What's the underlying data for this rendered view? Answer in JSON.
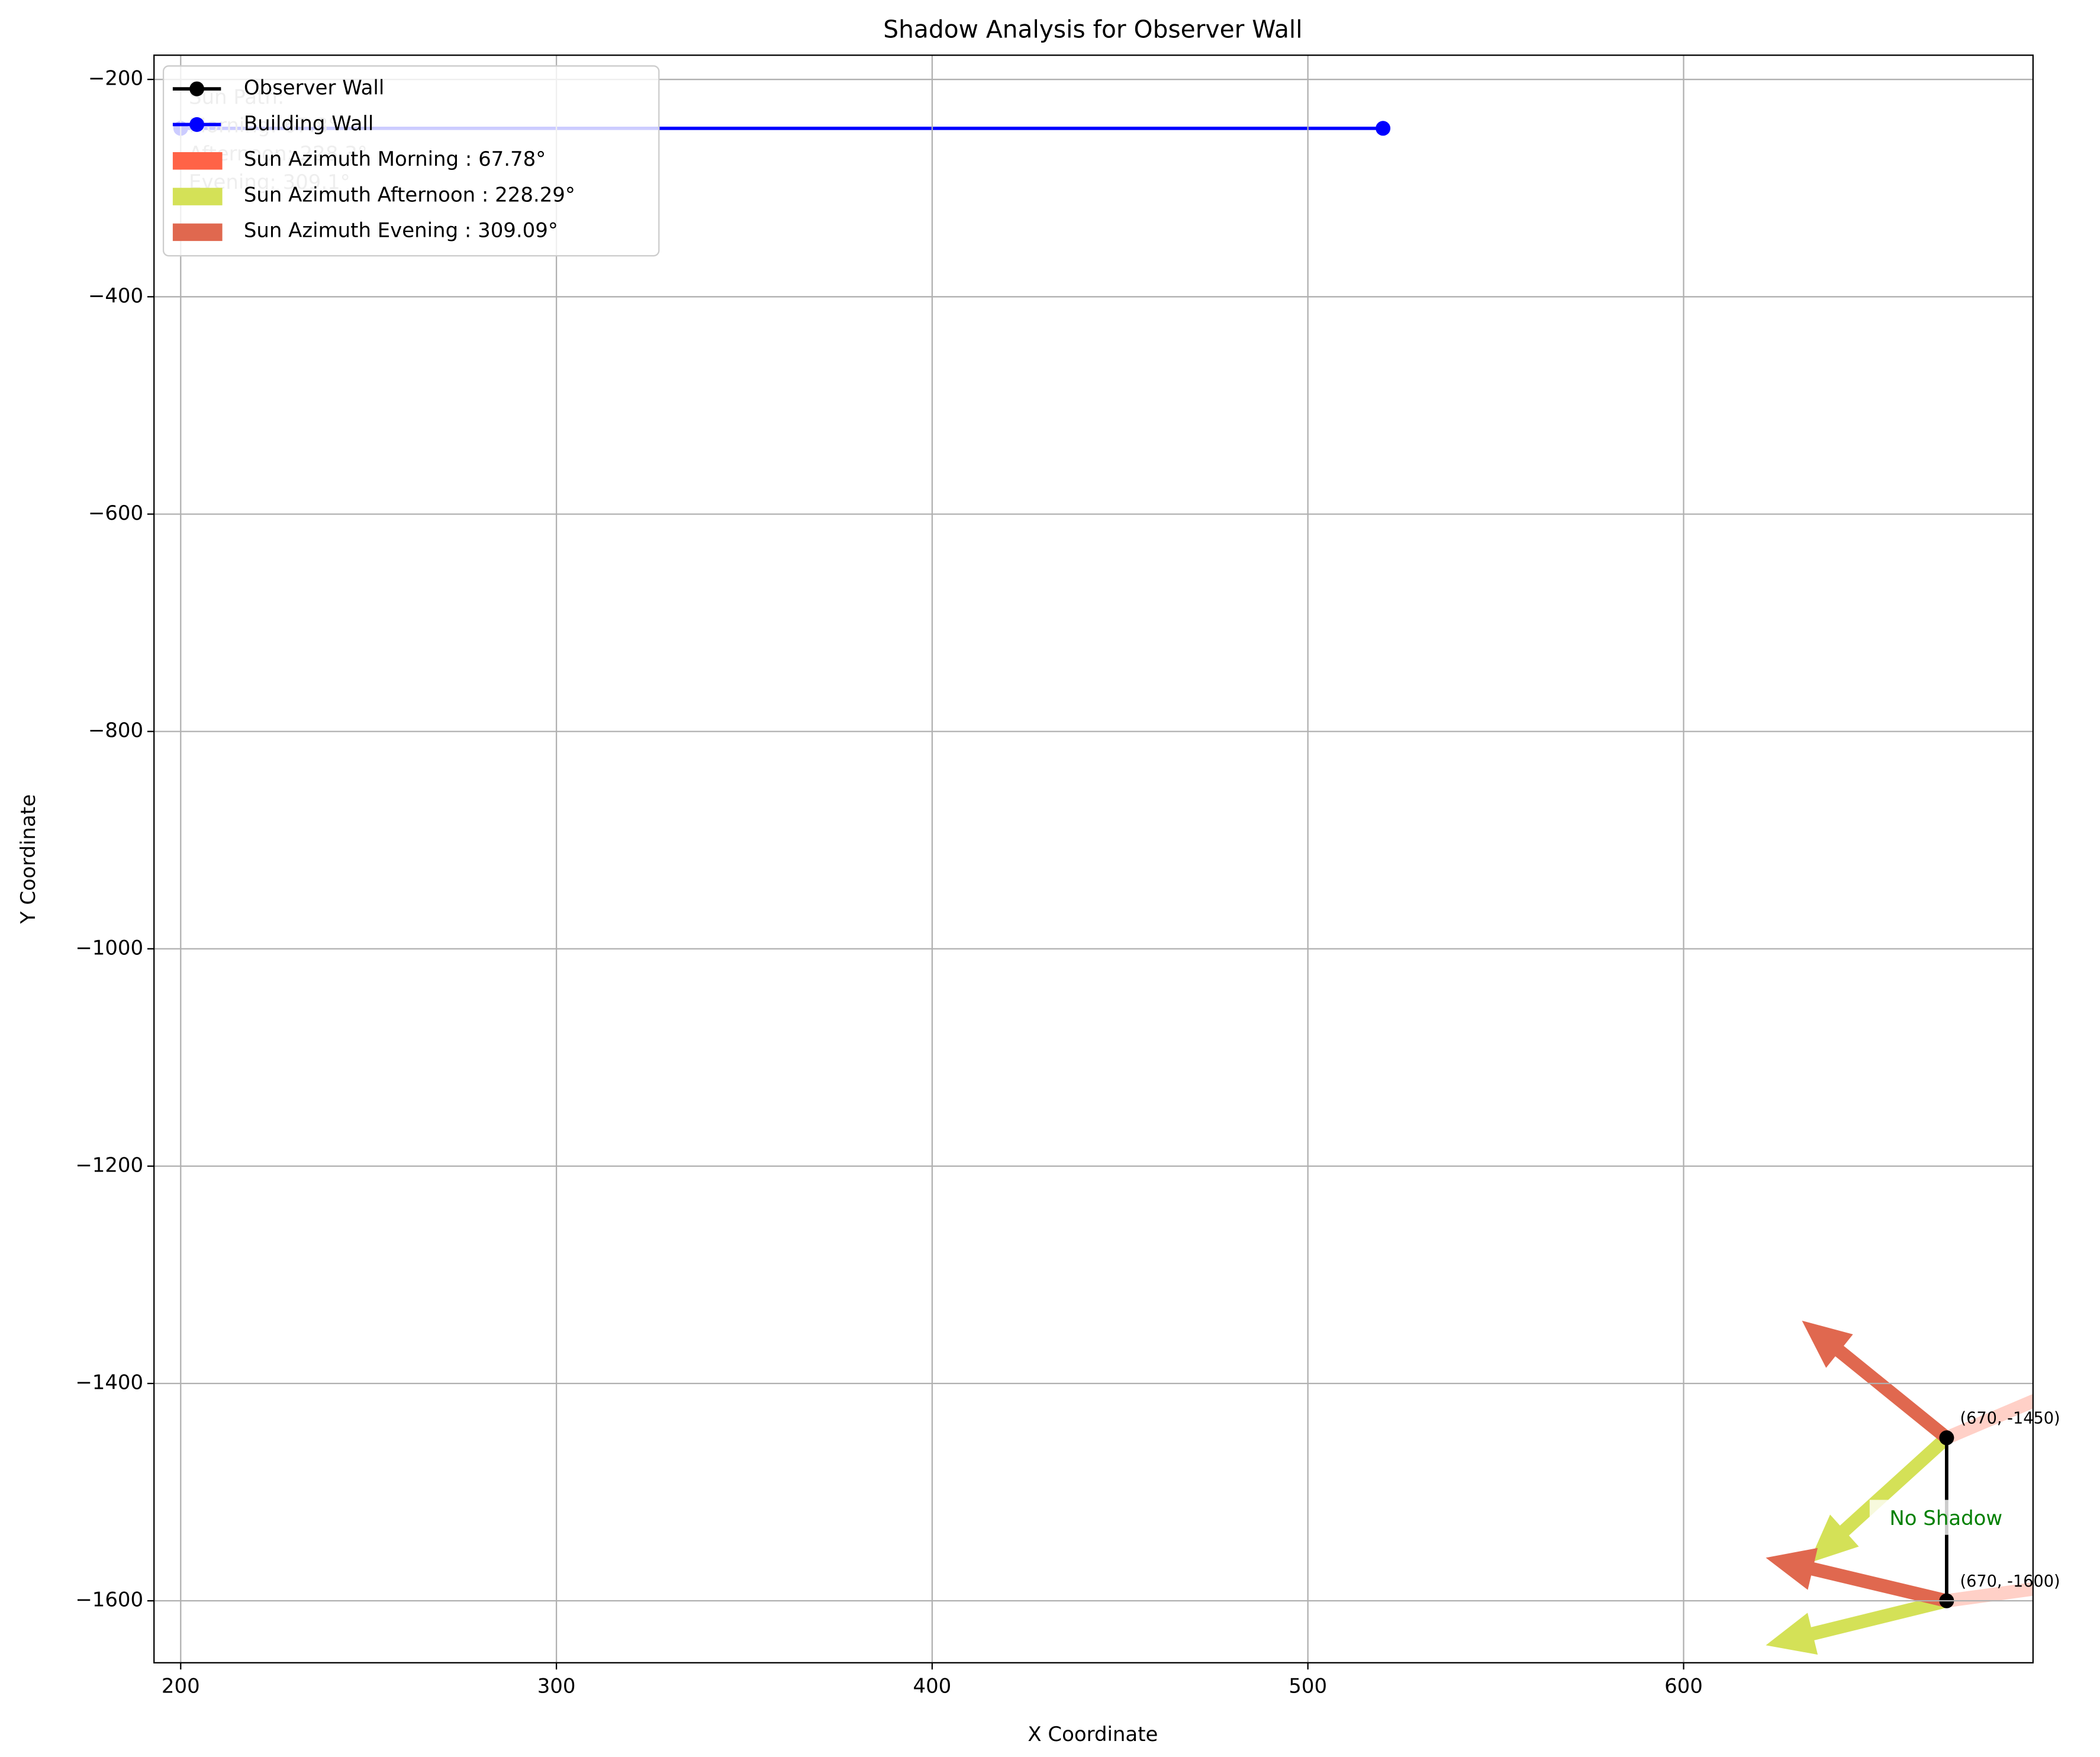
{
  "chart_data": {
    "type": "line",
    "title": "Shadow Analysis for Observer Wall",
    "x_label": "X Coordinate",
    "y_label": "Y Coordinate",
    "xlim": [
      192.9,
      693
    ],
    "ylim": [
      -1657,
      -177.7
    ],
    "xticks": [
      200,
      300,
      400,
      500,
      600
    ],
    "yticks": [
      {
        "value": -200,
        "label": "−200"
      },
      {
        "value": -400,
        "label": "−400"
      },
      {
        "value": -600,
        "label": "−600"
      },
      {
        "value": -800,
        "label": "−800"
      },
      {
        "value": -1000,
        "label": "−1000"
      },
      {
        "value": -1200,
        "label": "−1200"
      },
      {
        "value": -1400,
        "label": "−1400"
      },
      {
        "value": -1600,
        "label": "−1600"
      }
    ],
    "grid": true,
    "legend": "upper left",
    "series": [
      {
        "name": "Observer Wall",
        "color": "#000000",
        "x": [
          670,
          670
        ],
        "values": [
          -1450,
          -1600
        ]
      },
      {
        "name": "Building Wall",
        "color": "#0000ff",
        "x": [
          200,
          520
        ],
        "values": [
          -245,
          -245
        ]
      }
    ],
    "sun": [
      {
        "name": "Sun Azimuth Morning : 67.78°",
        "azimuth": 67.78,
        "color": "#ff6347"
      },
      {
        "name": "Sun Azimuth Afternoon : 228.29°",
        "azimuth": 228.29,
        "color": "#d4e157"
      },
      {
        "name": "Sun Azimuth Evening : 309.09°",
        "azimuth": 309.09,
        "color": "#e0684f"
      }
    ],
    "point_labels": [
      "(670, -1450)",
      "(670, -1600)"
    ],
    "status": "No Shadow",
    "annotation": [
      "Sun Path:",
      "Morning: 67.8°",
      "Afternoon: 228.3°",
      "Evening: 309.1°"
    ]
  }
}
